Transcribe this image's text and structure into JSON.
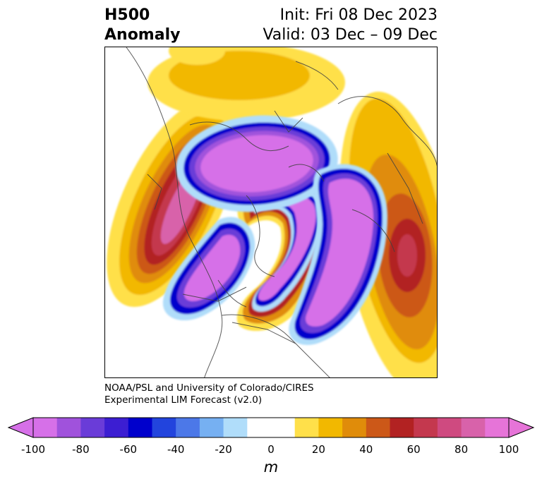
{
  "header": {
    "title_line1": "H500",
    "title_line2": "Anomaly",
    "init_text": "Init: Fri 08 Dec 2023",
    "valid_text": "Valid: 03 Dec – 09 Dec"
  },
  "credit": {
    "line1": "NOAA/PSL and University of Colorado/CIRES",
    "line2": "Experimental LIM Forecast (v2.0)"
  },
  "colorbar": {
    "unit": "m",
    "ticks": [
      "-100",
      "-80",
      "-60",
      "-40",
      "-20",
      "0",
      "20",
      "40",
      "60",
      "80",
      "100"
    ],
    "colors": [
      "#d670e8",
      "#a052dc",
      "#6a3cd8",
      "#3c1ed2",
      "#0000cc",
      "#2244dd",
      "#4c78e8",
      "#76b0f2",
      "#b0ddfa",
      "#ffffff",
      "#ffffff",
      "#ffe04a",
      "#f2b800",
      "#e08c0a",
      "#cc5818",
      "#b22222",
      "#c4384e",
      "#cf4a80",
      "#d862aa",
      "#e674d8"
    ]
  },
  "map": {
    "projection": "polar stereographic, North Pole",
    "colors": {
      "neg100": "#d670e8",
      "neg80": "#a052dc",
      "neg60": "#6a3cd8",
      "neg40": "#3c1ed2",
      "neg30": "#0000cc",
      "neg20": "#4c78e8",
      "neg10": "#b0ddfa",
      "pos10": "#ffe04a",
      "pos20": "#f2b800",
      "pos30": "#e08c0a",
      "pos40": "#cc5818",
      "pos60": "#b22222",
      "pos70": "#c4384e",
      "pos80": "#d862aa",
      "coastline": "#404040"
    }
  }
}
